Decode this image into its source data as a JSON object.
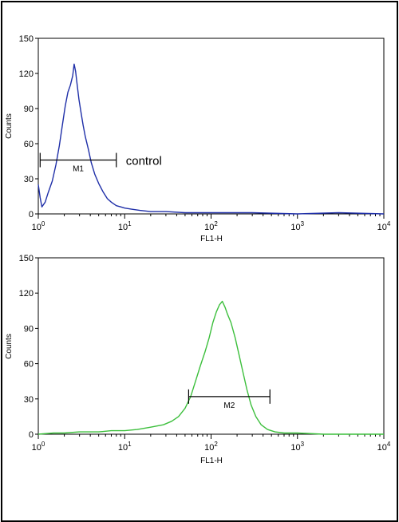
{
  "colors": {
    "panel1_line": "#1f2fa8",
    "panel2_line": "#3cbf3c",
    "axes": "#000000"
  },
  "chart_data": [
    {
      "type": "line",
      "title": "",
      "xlabel": "FL1-H",
      "ylabel": "Counts",
      "xscale": "log",
      "xlim": [
        1,
        10000
      ],
      "ylim": [
        0,
        150
      ],
      "yticks": [
        0,
        30,
        60,
        90,
        120,
        150
      ],
      "xtick_labels": [
        {
          "base": "10",
          "exp": "0"
        },
        {
          "base": "10",
          "exp": "1"
        },
        {
          "base": "10",
          "exp": "2"
        },
        {
          "base": "10",
          "exp": "3"
        },
        {
          "base": "10",
          "exp": "4"
        }
      ],
      "series": [
        {
          "name": "",
          "color": "#1f2fa8",
          "x": [
            1.0,
            1.05,
            1.1,
            1.2,
            1.3,
            1.45,
            1.6,
            1.75,
            1.9,
            2.05,
            2.2,
            2.35,
            2.5,
            2.6,
            2.7,
            2.8,
            2.95,
            3.1,
            3.3,
            3.5,
            3.8,
            4.1,
            4.5,
            5.0,
            5.6,
            6.3,
            7.0,
            8.0,
            9.0,
            10.0,
            12.0,
            15.0,
            20.0,
            30.0,
            50.0,
            100.0,
            300.0,
            1000.0,
            3000.0,
            10000.0
          ],
          "y": [
            25,
            14,
            6,
            10,
            18,
            28,
            42,
            58,
            76,
            92,
            104,
            110,
            118,
            128,
            122,
            112,
            98,
            88,
            76,
            66,
            55,
            44,
            34,
            26,
            19,
            13,
            10,
            7,
            6,
            5,
            4,
            3,
            2,
            2,
            1,
            1,
            1,
            0,
            1,
            0
          ]
        }
      ],
      "gate": {
        "label": "M1",
        "x_start": 1.05,
        "x_end": 8.0,
        "y": 46
      },
      "annotation": "control"
    },
    {
      "type": "line",
      "title": "",
      "xlabel": "FL1-H",
      "ylabel": "Counts",
      "xscale": "log",
      "xlim": [
        1,
        10000
      ],
      "ylim": [
        0,
        150
      ],
      "yticks": [
        0,
        30,
        60,
        90,
        120,
        150
      ],
      "xtick_labels": [
        {
          "base": "10",
          "exp": "0"
        },
        {
          "base": "10",
          "exp": "1"
        },
        {
          "base": "10",
          "exp": "2"
        },
        {
          "base": "10",
          "exp": "3"
        },
        {
          "base": "10",
          "exp": "4"
        }
      ],
      "series": [
        {
          "name": "",
          "color": "#3cbf3c",
          "x": [
            1.0,
            1.5,
            2.0,
            3.0,
            5.0,
            7.0,
            10.0,
            14.0,
            20.0,
            28.0,
            35.0,
            42.0,
            50.0,
            58.0,
            66.0,
            75.0,
            85.0,
            95.0,
            105.0,
            115.0,
            125.0,
            135.0,
            145.0,
            155.0,
            170.0,
            190.0,
            210.0,
            235.0,
            260.0,
            290.0,
            330.0,
            380.0,
            450.0,
            550.0,
            700.0,
            1000.0,
            2000.0,
            5000.0,
            10000.0
          ],
          "y": [
            0,
            1,
            1,
            2,
            2,
            3,
            3,
            4,
            6,
            8,
            11,
            15,
            22,
            32,
            45,
            58,
            70,
            82,
            95,
            104,
            110,
            113,
            108,
            102,
            95,
            82,
            68,
            52,
            38,
            25,
            15,
            8,
            4,
            2,
            1,
            1,
            0,
            0,
            0
          ]
        }
      ],
      "gate": {
        "label": "M2",
        "x_start": 55.0,
        "x_end": 480.0,
        "y": 32
      },
      "annotation": ""
    }
  ]
}
